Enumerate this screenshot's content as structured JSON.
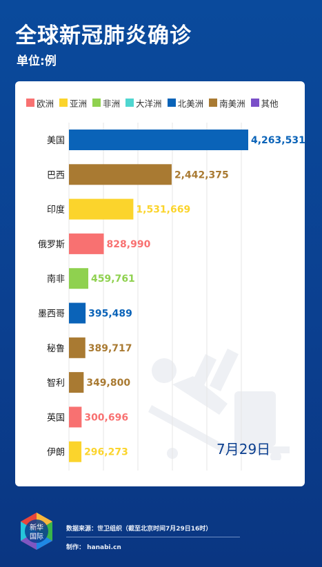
{
  "header": {
    "title": "全球新冠肺炎确诊",
    "unit": "单位:例"
  },
  "legend": [
    {
      "label": "欧洲",
      "color": "#f87171"
    },
    {
      "label": "亚洲",
      "color": "#fbd42c"
    },
    {
      "label": "非洲",
      "color": "#8fd14f"
    },
    {
      "label": "大洋洲",
      "color": "#4fd6d0"
    },
    {
      "label": "北美洲",
      "color": "#0a63b8"
    },
    {
      "label": "南美洲",
      "color": "#a97a32"
    },
    {
      "label": "其他",
      "color": "#7a4fc8"
    }
  ],
  "chart_data": {
    "type": "bar",
    "orientation": "horizontal",
    "categories": [
      "美国",
      "巴西",
      "印度",
      "俄罗斯",
      "南非",
      "墨西哥",
      "秘鲁",
      "智利",
      "英国",
      "伊朗"
    ],
    "values": [
      4263531,
      2442375,
      1531669,
      828990,
      459761,
      395489,
      389717,
      349800,
      300696,
      296273
    ],
    "value_labels": [
      "4,263,531",
      "2,442,375",
      "1,531,669",
      "828,990",
      "459,761",
      "395,489",
      "389,717",
      "349,800",
      "300,696",
      "296,273"
    ],
    "regions": [
      "北美洲",
      "南美洲",
      "亚洲",
      "欧洲",
      "非洲",
      "北美洲",
      "南美洲",
      "南美洲",
      "欧洲",
      "亚洲"
    ],
    "grid": true
  },
  "date_label": "7月29日",
  "footer": {
    "logo_text_top": "新华",
    "logo_text_bottom": "国际",
    "source": "数据来源：世卫组织（截至北京时间7月29日16时）",
    "credit": "制作：  hanabi.cn"
  }
}
